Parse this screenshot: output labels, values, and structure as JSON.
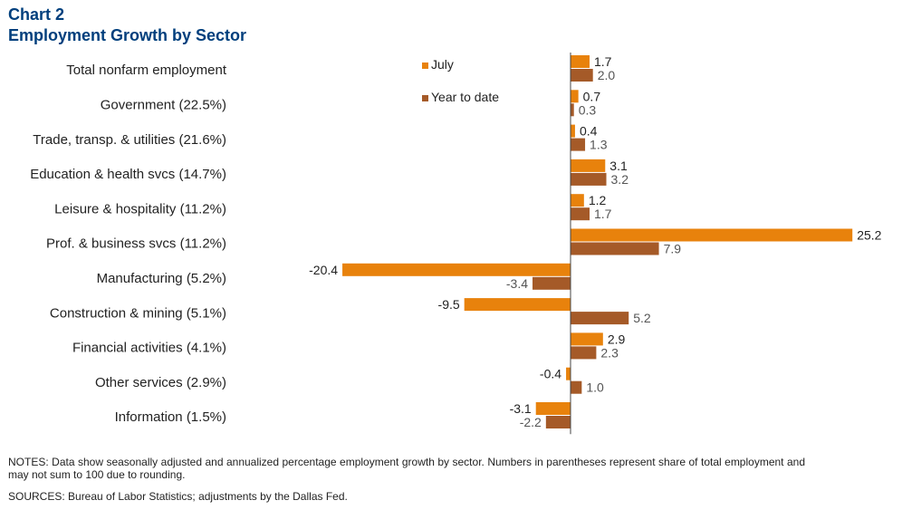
{
  "chart_number": "Chart 2",
  "title": "Employment Growth by Sector",
  "notes": "NOTES: Data show seasonally adjusted and annualized percentage employment growth by sector. Numbers in parentheses represent share of total employment and may not sum to 100 due to rounding.",
  "sources": "SOURCES: Bureau of Labor Statistics; adjustments by the Dallas Fed.",
  "chart_data": {
    "type": "bar",
    "orientation": "horizontal",
    "title": "Employment Growth by Sector",
    "categories": [
      "Total nonfarm employment",
      "Government (22.5%)",
      "Trade, transp. & utilities (21.6%)",
      "Education & health svcs (14.7%)",
      "Leisure & hospitality (11.2%)",
      "Prof. & business svcs (11.2%)",
      "Manufacturing (5.2%)",
      "Construction & mining (5.1%)",
      "Financial activities (4.1%)",
      "Other services (2.9%)",
      "Information (1.5%)"
    ],
    "series": [
      {
        "name": "July",
        "color": "#e8820c",
        "values": [
          1.7,
          0.7,
          0.4,
          3.1,
          1.2,
          25.2,
          -20.4,
          -9.5,
          2.9,
          -0.4,
          -3.1
        ]
      },
      {
        "name": "Year to date",
        "color": "#a55a28",
        "values": [
          2.0,
          0.3,
          1.3,
          3.2,
          1.7,
          7.9,
          -3.4,
          5.2,
          2.3,
          1.0,
          -2.2
        ]
      }
    ],
    "value_labels": [
      [
        "1.7",
        "0.7",
        "0.4",
        "3.1",
        "1.2",
        "25.2",
        "-20.4",
        "-9.5",
        "2.9",
        "-0.4",
        "-3.1"
      ],
      [
        "2.0",
        "0.3",
        "1.3",
        "3.2",
        "1.7",
        "7.9",
        "-3.4",
        "5.2",
        "2.3",
        "1.0",
        "-2.2"
      ]
    ],
    "xlim": [
      -25,
      25.2
    ],
    "grid": false,
    "legend": "top-center"
  }
}
